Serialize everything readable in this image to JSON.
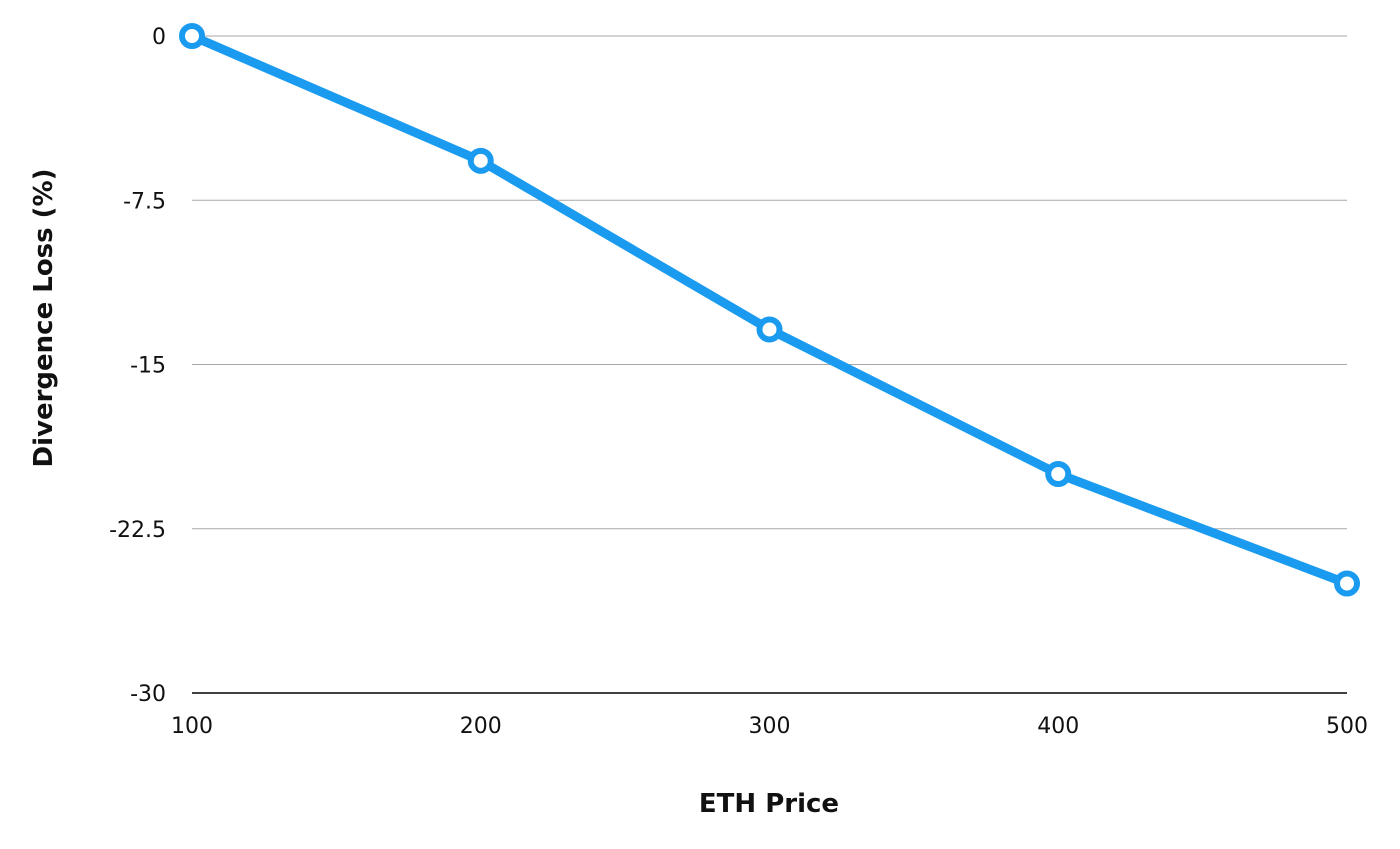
{
  "chart_data": {
    "type": "line",
    "title": "",
    "xlabel": "ETH Price",
    "ylabel": "Divergence Loss (%)",
    "x": [
      100,
      200,
      300,
      400,
      500
    ],
    "xticks": [
      "100",
      "200",
      "300",
      "400",
      "500"
    ],
    "yticks": [
      "0",
      "-7.5",
      "-15",
      "-22.5",
      "-30"
    ],
    "ytick_values": [
      0,
      -7.5,
      -15,
      -22.5,
      -30
    ],
    "xlim": [
      100,
      500
    ],
    "ylim": [
      -30,
      0
    ],
    "grid": true,
    "series": [
      {
        "values": [
          0,
          -5.7,
          -13.4,
          -20.0,
          -25.0
        ],
        "color": "#1a9bf0"
      }
    ],
    "gridline_color": "#a8a8a8",
    "baseline_color": "#000000"
  }
}
